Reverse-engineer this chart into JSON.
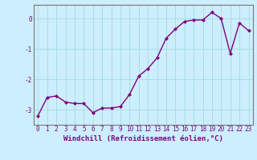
{
  "x": [
    0,
    1,
    2,
    3,
    4,
    5,
    6,
    7,
    8,
    9,
    10,
    11,
    12,
    13,
    14,
    15,
    16,
    17,
    18,
    19,
    20,
    21,
    22,
    23
  ],
  "y": [
    -3.2,
    -2.6,
    -2.55,
    -2.75,
    -2.8,
    -2.8,
    -3.1,
    -2.95,
    -2.95,
    -2.9,
    -2.5,
    -1.9,
    -1.65,
    -1.3,
    -0.65,
    -0.35,
    -0.1,
    -0.05,
    -0.05,
    0.2,
    0.0,
    -1.15,
    -0.15,
    -0.4
  ],
  "line_color": "#800080",
  "marker": "D",
  "marker_size": 2.0,
  "bg_color": "#cceeff",
  "grid_color": "#aadddd",
  "xlim": [
    -0.5,
    23.5
  ],
  "ylim": [
    -3.5,
    0.45
  ],
  "yticks": [
    0,
    -1,
    -2,
    -3
  ],
  "xticks": [
    0,
    1,
    2,
    3,
    4,
    5,
    6,
    7,
    8,
    9,
    10,
    11,
    12,
    13,
    14,
    15,
    16,
    17,
    18,
    19,
    20,
    21,
    22,
    23
  ],
  "tick_fontsize": 5.5,
  "xlabel": "Windchill (Refroidissement éolien,°C)",
  "xlabel_fontsize": 6.5,
  "spine_color": "#777777",
  "linewidth": 1.0
}
